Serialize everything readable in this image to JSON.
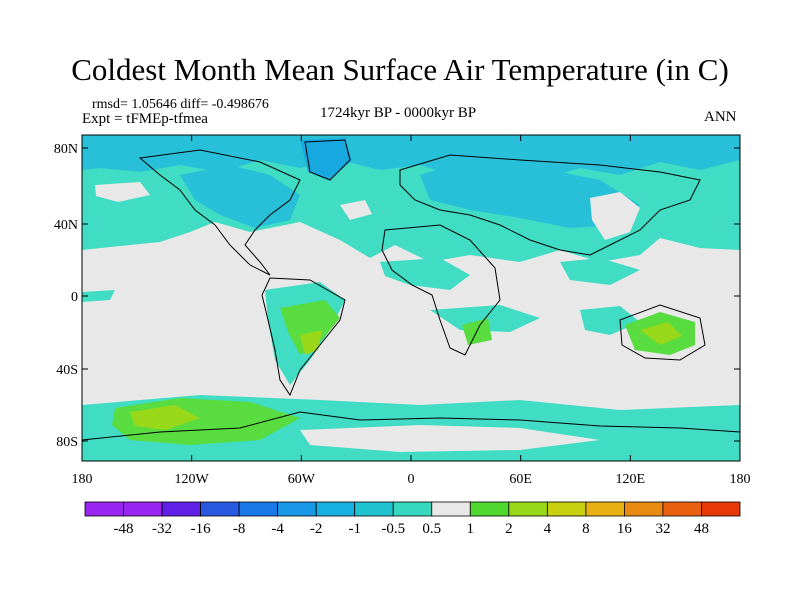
{
  "title": "Coldest Month Mean Surface Air Temperature (in C)",
  "stats": "rmsd= 1.05646 diff= -0.498676",
  "expt": "Expt = tFMEp-tfmea",
  "period": "1724kyr BP - 0000kyr BP",
  "season": "ANN",
  "map": {
    "lat_ticks": [
      "80N",
      "40N",
      "0",
      "40S",
      "80S"
    ],
    "lon_ticks": [
      "180",
      "120W",
      "60W",
      "0",
      "60E",
      "120E",
      "180"
    ],
    "colors": {
      "neutral": "#e8e8e8",
      "cool1": "#40dcc4",
      "cool2": "#28c0d8",
      "cool3": "#18a8e0",
      "warm1": "#58dc40",
      "warm2": "#98d818"
    }
  },
  "colorbar": {
    "labels": [
      "-48",
      "-32",
      "-16",
      "-8",
      "-4",
      "-2",
      "-1",
      "-0.5",
      "0.5",
      "1",
      "2",
      "4",
      "8",
      "16",
      "32",
      "48"
    ],
    "colors": [
      "#9a24f0",
      "#6020e8",
      "#2858e0",
      "#1a78e8",
      "#1a98e8",
      "#18b0e0",
      "#20c4d0",
      "#38d8c0",
      "#e8e8e8",
      "#50d830",
      "#98d818",
      "#c8d010",
      "#e8b010",
      "#e88a10",
      "#e86010",
      "#e83808"
    ]
  }
}
